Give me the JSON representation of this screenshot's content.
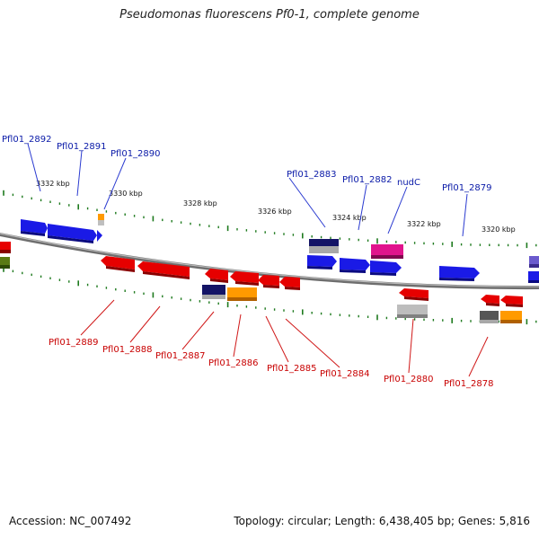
{
  "title": "Pseudomonas fluorescens Pf0-1, complete genome",
  "footer": {
    "accession": "Accession: NC_007492",
    "summary": "Topology: circular; Length: 6,438,405 bp; Genes: 5,816"
  },
  "colors": {
    "top_label": "#0a1aa8",
    "bottom_label": "#c80000",
    "tick": "#1e7a1e",
    "backbone": "#7a7a7a"
  },
  "kbp_ticks": [
    "3332 kbp",
    "3330 kbp",
    "3328 kbp",
    "3326 kbp",
    "3324 kbp",
    "3322 kbp",
    "3320 kbp"
  ],
  "top_gene_labels": [
    "Pfl01_2892",
    "Pfl01_2891",
    "Pfl01_2890",
    "Pfl01_2883",
    "Pfl01_2882",
    "nudC",
    "Pfl01_2879"
  ],
  "bottom_gene_labels": [
    "Pfl01_2889",
    "Pfl01_2888",
    "Pfl01_2887",
    "Pfl01_2886",
    "Pfl01_2885",
    "Pfl01_2884",
    "Pfl01_2880",
    "Pfl01_2878"
  ],
  "feature_colors": {
    "blue": "#1a1ae6",
    "red": "#e60000",
    "navy": "#141466",
    "orange": "#ff9a00",
    "pink": "#e0148c",
    "gray": "#a8a8a8",
    "darkgray": "#555555",
    "green": "#5a7a14",
    "purple": "#6a5acd"
  }
}
